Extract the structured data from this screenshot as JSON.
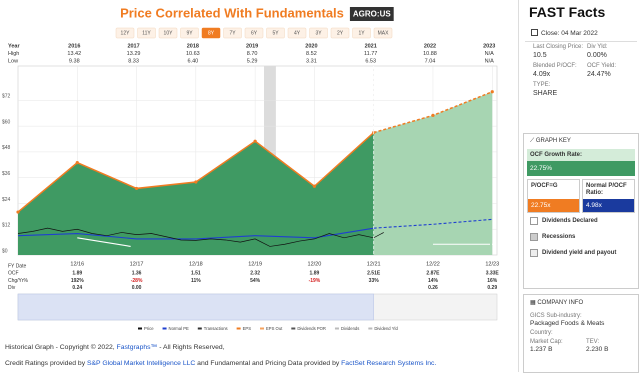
{
  "header": {
    "title": "Price Correlated With Fundamentals",
    "ticker": "AGRO:US",
    "ranges": [
      "12Y",
      "11Y",
      "10Y",
      "9Y",
      "8Y",
      "7Y",
      "6Y",
      "5Y",
      "4Y",
      "3Y",
      "2Y",
      "1Y",
      "MAX"
    ],
    "selected_range": "8Y"
  },
  "table": {
    "labels": [
      "Year",
      "High",
      "Low"
    ],
    "years": [
      "2016",
      "2017",
      "2018",
      "2019",
      "2020",
      "2021",
      "2022",
      "2023"
    ],
    "high": [
      "13.42",
      "13.29",
      "10.63",
      "8.70",
      "8.52",
      "11.77",
      "10.88",
      "N/A"
    ],
    "low": [
      "9.38",
      "8.33",
      "6.40",
      "5.29",
      "3.31",
      "6.53",
      "7.04",
      "N/A"
    ]
  },
  "chart_data": {
    "type": "line",
    "xlim": [
      2015,
      2023.08
    ],
    "xticks": [
      {
        "value": 2016,
        "label": "12/16"
      },
      {
        "value": 2017,
        "label": "12/17"
      },
      {
        "value": 2018,
        "label": "12/18"
      },
      {
        "value": 2019,
        "label": "12/19"
      },
      {
        "value": 2020,
        "label": "12/20"
      },
      {
        "value": 2021,
        "label": "12/21"
      },
      {
        "value": 2022,
        "label": "12/22"
      },
      {
        "value": 2023,
        "label": "12/23"
      }
    ],
    "ylim": [
      0,
      88
    ],
    "yticks": [
      {
        "value": 0,
        "label": "$0"
      },
      {
        "value": 12,
        "label": "$12"
      },
      {
        "value": 24,
        "label": "$24"
      },
      {
        "value": 36,
        "label": "$36"
      },
      {
        "value": 48,
        "label": "$48"
      },
      {
        "value": 60,
        "label": "$60"
      },
      {
        "value": 72,
        "label": "$72"
      }
    ],
    "grid": true,
    "forecast_from": 2021,
    "recession": [
      2019.15,
      2019.35
    ],
    "series": [
      {
        "style": "area",
        "color": "#f07c22",
        "fill": "#3f9a63",
        "forecast_fill": "#a7d5b2",
        "x": [
          2015,
          2016,
          2017,
          2018,
          2019,
          2020,
          2021,
          2022,
          2023
        ],
        "values": [
          20,
          43,
          31,
          34,
          53,
          32,
          57,
          65,
          76
        ]
      },
      {
        "style": "line",
        "color": "#1f3fd0",
        "x": [
          2015,
          2016,
          2017,
          2018,
          2019,
          2020,
          2021,
          2022,
          2023
        ],
        "values": [
          9,
          10,
          7.5,
          7.5,
          9,
          8,
          12.5,
          14.3,
          16.6
        ]
      },
      {
        "style": "line",
        "color": "#ffffff",
        "x": [
          2016,
          2016.9,
          2021.5,
          2022,
          2023.08
        ],
        "values": [
          8,
          4,
          null,
          5,
          5
        ]
      },
      {
        "style": "thin",
        "color": "#111111",
        "x": [
          2015,
          2015.25,
          2015.5,
          2015.75,
          2016,
          2016.25,
          2016.5,
          2016.75,
          2017,
          2017.25,
          2017.5,
          2017.75,
          2018,
          2018.25,
          2018.5,
          2018.75,
          2019,
          2019.25,
          2019.5,
          2019.75,
          2020,
          2020.25,
          2020.5,
          2020.75,
          2021,
          2021.17
        ],
        "values": [
          10,
          11,
          12.5,
          11,
          12,
          10,
          9,
          10.5,
          9.5,
          10,
          8.5,
          7,
          6.8,
          7.5,
          7,
          6,
          7.5,
          4,
          5,
          6.5,
          7.5,
          10,
          8,
          9.5,
          8,
          10.5
        ]
      }
    ],
    "legend": [
      {
        "label": "Price",
        "color": "#111111"
      },
      {
        "label": "Normal PE",
        "color": "#1f3fd0"
      },
      {
        "label": "Transactions",
        "color": "#333333"
      },
      {
        "label": "EPS",
        "color": "#f07c22"
      },
      {
        "label": "EPS Out",
        "color": "#f5a25d"
      },
      {
        "label": "Dividends POR",
        "color": "#555555"
      },
      {
        "label": "Dividends",
        "color": "#bbbbbb"
      },
      {
        "label": "Dividend Yld",
        "color": "#bbbbbb"
      }
    ]
  },
  "fundamentals": {
    "labels": [
      "FY Date",
      "OCF",
      "Chg/Yr%",
      "Div"
    ],
    "ocf": [
      "1.89",
      "1.36",
      "1.51",
      "2.32",
      "1.89",
      "2.51E",
      "2.87E",
      "3.33E"
    ],
    "change": [
      "192%",
      "-28%",
      "11%",
      "54%",
      "-19%",
      "33%",
      "14%",
      "16%"
    ],
    "div": [
      "0.24",
      "0.00",
      null,
      null,
      null,
      null,
      "0.26",
      "0.29"
    ]
  },
  "sidebar": {
    "title": "FAST Facts",
    "close": "Close: 04 Mar 2022",
    "facts": [
      {
        "label": "Last Closing Price:",
        "value": "10.5"
      },
      {
        "label": "Div Yld:",
        "value": "0.00%"
      },
      {
        "label": "Blended P/OCF:",
        "value": "4.09x"
      },
      {
        "label": "OCF Yield:",
        "value": "24.47%"
      },
      {
        "label": "TYPE:",
        "value": "SHARE"
      }
    ],
    "graph_key": {
      "title": "GRAPH KEY",
      "growth_label": "OCF Growth Rate:",
      "growth_value": "22.75%",
      "pocf_label": "P/OCF=G",
      "pocf_value": "22.75x",
      "normal_label": "Normal P/OCF Ratio:",
      "normal_value": "4.98x",
      "items": [
        "Dividends Declared",
        "Recessions",
        "Dividend yield and payout"
      ]
    },
    "company": {
      "title": "COMPANY INFO",
      "sub_label": "GICS Sub-industry:",
      "sub_value": "Packaged Foods & Meats",
      "country_label": "Country:",
      "cap_label": "Market Cap:",
      "cap_value": "1.237 B",
      "tev_label": "TEV:",
      "tev_value": "2.230 B"
    }
  },
  "footer": {
    "line1": "Historical Graph - Copyright © 2022, ",
    "link1": "Fastgraphs™",
    "line1b": " - All Rights Reserved,",
    "line2a": "Credit Ratings provided by ",
    "link2": "S&P Global Market Intelligence LLC",
    "line2b": " and Fundamental and Pricing Data provided by ",
    "link3": "FactSet Research Systems Inc."
  }
}
